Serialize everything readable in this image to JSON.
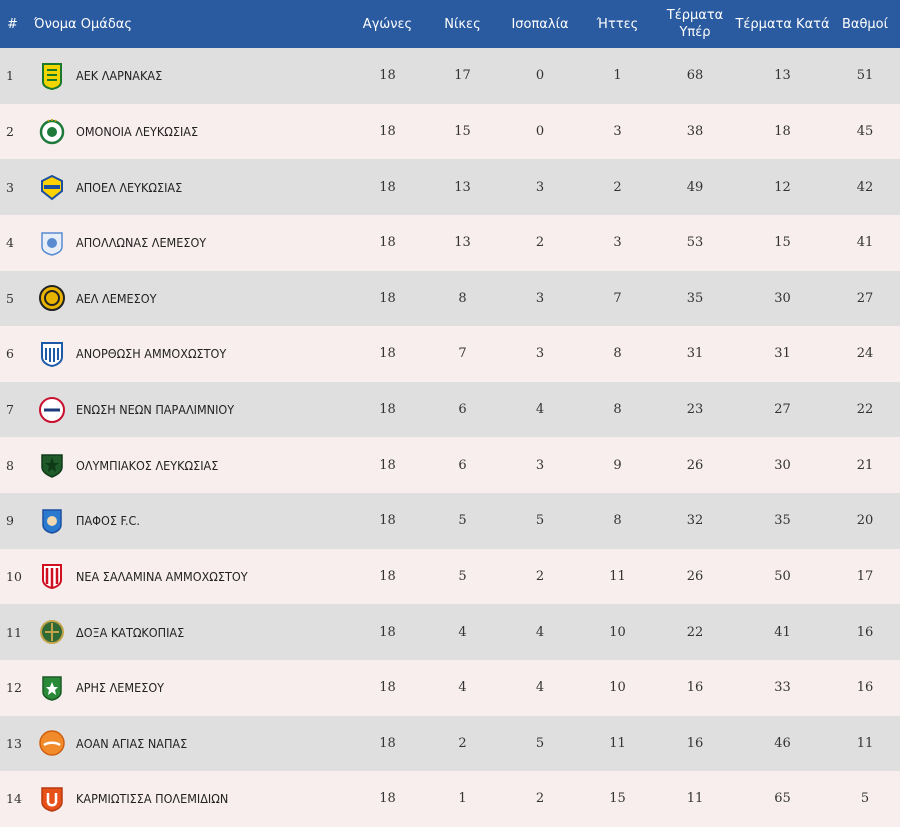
{
  "header": {
    "rank": "#",
    "team": "Όνομα Ομάδας",
    "played": "Αγώνες",
    "wins": "Νίκες",
    "draws": "Ισοπαλία",
    "losses": "Ήττες",
    "goals_for": "Τέρματα Υπέρ",
    "goals_against": "Τέρματα Κατά",
    "points": "Βαθμοί"
  },
  "rows": [
    {
      "rank": "1",
      "team": "ΑΕΚ ΛΑΡΝΑΚΑΣ",
      "logo": "aek-larnaca-logo",
      "played": "18",
      "wins": "17",
      "draws": "0",
      "losses": "1",
      "gf": "68",
      "ga": "13",
      "pts": "51"
    },
    {
      "rank": "2",
      "team": "ΟΜΟΝΟΙΑ ΛΕΥΚΩΣΙΑΣ",
      "logo": "omonoia-logo",
      "played": "18",
      "wins": "15",
      "draws": "0",
      "losses": "3",
      "gf": "38",
      "ga": "18",
      "pts": "45"
    },
    {
      "rank": "3",
      "team": "ΑΠΟΕΛ ΛΕΥΚΩΣΙΑΣ",
      "logo": "apoel-logo",
      "played": "18",
      "wins": "13",
      "draws": "3",
      "losses": "2",
      "gf": "49",
      "ga": "12",
      "pts": "42"
    },
    {
      "rank": "4",
      "team": "ΑΠΟΛΛΩΝΑΣ ΛΕΜΕΣΟΥ",
      "logo": "apollon-logo",
      "played": "18",
      "wins": "13",
      "draws": "2",
      "losses": "3",
      "gf": "53",
      "ga": "15",
      "pts": "41"
    },
    {
      "rank": "5",
      "team": "ΑΕΛ ΛΕΜΕΣΟΥ",
      "logo": "ael-logo",
      "played": "18",
      "wins": "8",
      "draws": "3",
      "losses": "7",
      "gf": "35",
      "ga": "30",
      "pts": "27"
    },
    {
      "rank": "6",
      "team": "ΑΝΟΡΘΩΣΗ ΑΜΜΟΧΩΣΤΟΥ",
      "logo": "anorthosis-logo",
      "played": "18",
      "wins": "7",
      "draws": "3",
      "losses": "8",
      "gf": "31",
      "ga": "31",
      "pts": "24"
    },
    {
      "rank": "7",
      "team": "ΕΝΩΣΗ ΝΕΩΝ ΠΑΡΑΛΙΜΝΙΟΥ",
      "logo": "enp-logo",
      "played": "18",
      "wins": "6",
      "draws": "4",
      "losses": "8",
      "gf": "23",
      "ga": "27",
      "pts": "22"
    },
    {
      "rank": "8",
      "team": "ΟΛΥΜΠΙΑΚΟΣ ΛΕΥΚΩΣΙΑΣ",
      "logo": "olympiakos-nicosia-logo",
      "played": "18",
      "wins": "6",
      "draws": "3",
      "losses": "9",
      "gf": "26",
      "ga": "30",
      "pts": "21"
    },
    {
      "rank": "9",
      "team": "ΠΑΦΟΣ F.C.",
      "logo": "pafos-logo",
      "played": "18",
      "wins": "5",
      "draws": "5",
      "losses": "8",
      "gf": "32",
      "ga": "35",
      "pts": "20"
    },
    {
      "rank": "10",
      "team": "ΝΕΑ ΣΑΛΑΜΙΝΑ ΑΜΜΟΧΩΣΤΟΥ",
      "logo": "nea-salamina-logo",
      "played": "18",
      "wins": "5",
      "draws": "2",
      "losses": "11",
      "gf": "26",
      "ga": "50",
      "pts": "17"
    },
    {
      "rank": "11",
      "team": "ΔΟΞΑ ΚΑΤΩΚΟΠΙΑΣ",
      "logo": "doxa-logo",
      "played": "18",
      "wins": "4",
      "draws": "4",
      "losses": "10",
      "gf": "22",
      "ga": "41",
      "pts": "16"
    },
    {
      "rank": "12",
      "team": "ΑΡΗΣ ΛΕΜΕΣΟΥ",
      "logo": "aris-logo",
      "played": "18",
      "wins": "4",
      "draws": "4",
      "losses": "10",
      "gf": "16",
      "ga": "33",
      "pts": "16"
    },
    {
      "rank": "13",
      "team": "ΑΟΑΝ ΑΓΙΑΣ ΝΑΠΑΣ",
      "logo": "aoan-logo",
      "played": "18",
      "wins": "2",
      "draws": "5",
      "losses": "11",
      "gf": "16",
      "ga": "46",
      "pts": "11"
    },
    {
      "rank": "14",
      "team": "ΚΑΡΜΙΩΤΙΣΣΑ ΠΟΛΕΜΙΔΙΩΝ",
      "logo": "karmiotissa-logo",
      "played": "18",
      "wins": "1",
      "draws": "2",
      "losses": "15",
      "gf": "11",
      "ga": "65",
      "pts": "5"
    }
  ],
  "colors": {
    "header_bg": "#2a5aa0",
    "row_odd": "#dfdfdf",
    "row_even": "#f8eeee"
  }
}
